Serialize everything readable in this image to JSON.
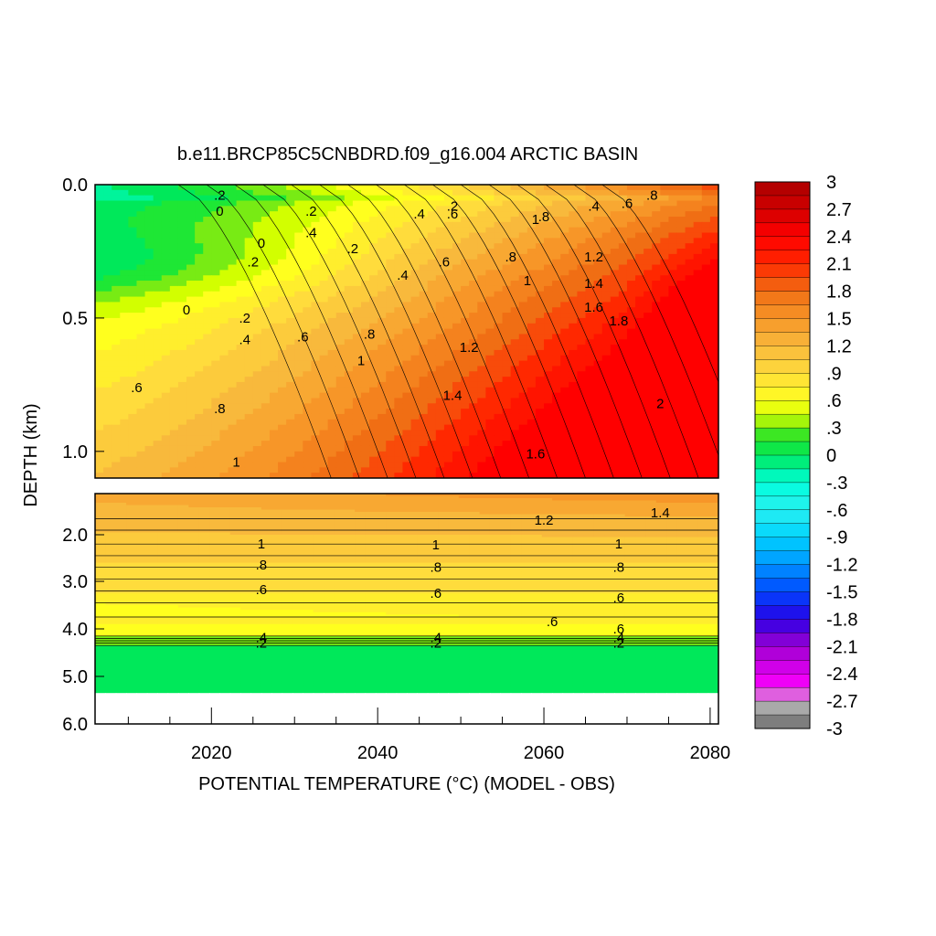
{
  "chart_data": {
    "type": "heatmap",
    "title": "b.e11.BRCP85C5CNBDRD.f09_g16.004 ARCTIC BASIN",
    "xlabel": "POTENTIAL TEMPERATURE (°C) (MODEL - OBS)",
    "ylabel": "DEPTH (km)",
    "x_range": [
      2006,
      2081
    ],
    "x_ticks": [
      2020,
      2040,
      2060,
      2080
    ],
    "x_tick_labels": [
      "2020",
      "2040",
      "2060",
      "2080"
    ],
    "panels": [
      {
        "name": "upper",
        "depth_range_km": [
          0.0,
          1.1
        ],
        "y_ticks": [
          0.0,
          0.5,
          1.0
        ],
        "y_tick_labels": [
          "0.0",
          "0.5",
          "1.0"
        ],
        "contour_labels": [
          {
            "text": ".2",
            "year": 2021,
            "depth": 0.04
          },
          {
            "text": "0",
            "year": 2021,
            "depth": 0.1
          },
          {
            "text": ".2",
            "year": 2032,
            "depth": 0.1
          },
          {
            "text": ".4",
            "year": 2032,
            "depth": 0.18
          },
          {
            "text": "0",
            "year": 2026,
            "depth": 0.22
          },
          {
            "text": ".2",
            "year": 2025,
            "depth": 0.29
          },
          {
            "text": ".2",
            "year": 2037,
            "depth": 0.24
          },
          {
            "text": ".4",
            "year": 2045,
            "depth": 0.11
          },
          {
            "text": ".6",
            "year": 2049,
            "depth": 0.11
          },
          {
            "text": ".2",
            "year": 2049,
            "depth": 0.08
          },
          {
            "text": ".4",
            "year": 2043,
            "depth": 0.34
          },
          {
            "text": ".6",
            "year": 2048,
            "depth": 0.29
          },
          {
            "text": ".8",
            "year": 2060,
            "depth": 0.12
          },
          {
            "text": "1",
            "year": 2059,
            "depth": 0.13
          },
          {
            "text": ".8",
            "year": 2056,
            "depth": 0.27
          },
          {
            "text": "1",
            "year": 2058,
            "depth": 0.36
          },
          {
            "text": ".4",
            "year": 2066,
            "depth": 0.08
          },
          {
            "text": ".6",
            "year": 2070,
            "depth": 0.07
          },
          {
            "text": ".8",
            "year": 2073,
            "depth": 0.04
          },
          {
            "text": "1.2",
            "year": 2066,
            "depth": 0.27
          },
          {
            "text": "1.4",
            "year": 2066,
            "depth": 0.37
          },
          {
            "text": "1.6",
            "year": 2066,
            "depth": 0.46
          },
          {
            "text": "1.8",
            "year": 2069,
            "depth": 0.51
          },
          {
            "text": "0",
            "year": 2017,
            "depth": 0.47
          },
          {
            "text": ".2",
            "year": 2024,
            "depth": 0.5
          },
          {
            "text": ".4",
            "year": 2024,
            "depth": 0.58
          },
          {
            "text": ".6",
            "year": 2031,
            "depth": 0.57
          },
          {
            "text": ".8",
            "year": 2039,
            "depth": 0.56
          },
          {
            "text": "1",
            "year": 2038,
            "depth": 0.66
          },
          {
            "text": "1.2",
            "year": 2051,
            "depth": 0.61
          },
          {
            "text": ".6",
            "year": 2011,
            "depth": 0.76
          },
          {
            "text": ".8",
            "year": 2021,
            "depth": 0.84
          },
          {
            "text": "1.4",
            "year": 2049,
            "depth": 0.79
          },
          {
            "text": "2",
            "year": 2074,
            "depth": 0.82
          },
          {
            "text": "1",
            "year": 2023,
            "depth": 1.04
          },
          {
            "text": "1.6",
            "year": 2059,
            "depth": 1.01
          }
        ]
      },
      {
        "name": "lower",
        "depth_range_km": [
          1.1,
          6.0
        ],
        "y_ticks": [
          2.0,
          3.0,
          4.0,
          5.0,
          6.0
        ],
        "y_tick_labels": [
          "2.0",
          "3.0",
          "4.0",
          "5.0",
          "6.0"
        ],
        "contour_labels": [
          {
            "text": "1.2",
            "year": 2060,
            "depth": 1.68
          },
          {
            "text": "1.4",
            "year": 2074,
            "depth": 1.52
          },
          {
            "text": "1",
            "year": 2026,
            "depth": 2.2
          },
          {
            "text": "1",
            "year": 2047,
            "depth": 2.22
          },
          {
            "text": "1",
            "year": 2069,
            "depth": 2.2
          },
          {
            "text": ".8",
            "year": 2026,
            "depth": 2.65
          },
          {
            "text": ".8",
            "year": 2047,
            "depth": 2.7
          },
          {
            "text": ".8",
            "year": 2069,
            "depth": 2.7
          },
          {
            "text": ".6",
            "year": 2026,
            "depth": 3.17
          },
          {
            "text": ".6",
            "year": 2047,
            "depth": 3.25
          },
          {
            "text": ".6",
            "year": 2069,
            "depth": 3.35
          },
          {
            "text": ".6",
            "year": 2061,
            "depth": 3.85
          },
          {
            "text": ".6",
            "year": 2069,
            "depth": 4.0
          },
          {
            "text": ".4",
            "year": 2026,
            "depth": 4.18
          },
          {
            "text": ".2",
            "year": 2026,
            "depth": 4.3
          },
          {
            "text": ".4",
            "year": 2047,
            "depth": 4.18
          },
          {
            "text": ".2",
            "year": 2047,
            "depth": 4.3
          },
          {
            "text": ".4",
            "year": 2069,
            "depth": 4.18
          },
          {
            "text": ".2",
            "year": 2069,
            "depth": 4.3
          }
        ]
      }
    ],
    "colorbar": {
      "range": [
        -3,
        3
      ],
      "step": 0.15,
      "labels": [
        "3",
        "2.7",
        "2.4",
        "2.1",
        "1.8",
        "1.5",
        "1.2",
        ".9",
        ".6",
        ".3",
        "0",
        "-.3",
        "-.6",
        "-.9",
        "-1.2",
        "-1.5",
        "-1.8",
        "-2.1",
        "-2.4",
        "-2.7",
        "-3"
      ]
    },
    "colors": {
      "warm_max": "#b00000",
      "red": "#ff1f00",
      "orange": "#f7941d",
      "yellow": "#ffff20",
      "green": "#00e84c",
      "cyan": "#00ffd9",
      "blue": "#0040ff",
      "magenta": "#ff00ff",
      "gray": "#bdbdbd"
    }
  }
}
